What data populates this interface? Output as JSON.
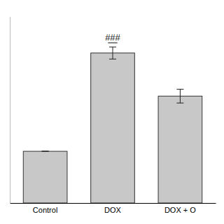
{
  "chart_data": {
    "type": "bar",
    "categories": [
      "Control",
      "DOX",
      "DOX + O"
    ],
    "values": [
      0.3,
      0.87,
      0.62
    ],
    "errors": [
      0.0,
      0.035,
      0.04
    ],
    "color": "#c8c8c8",
    "ylim": [
      0,
      1.08
    ],
    "tick_labels": "x",
    "annotations": [
      {
        "text": "###",
        "x": "DOX"
      }
    ]
  }
}
